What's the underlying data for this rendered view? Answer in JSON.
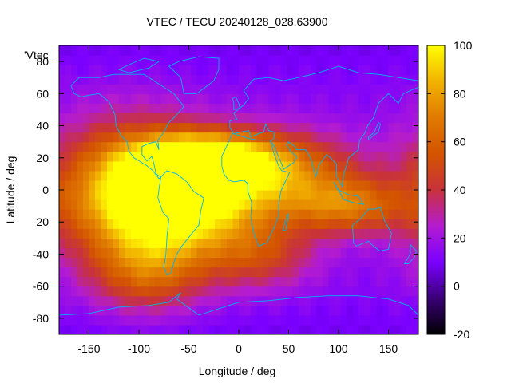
{
  "chart_data": {
    "type": "heatmap",
    "title": "VTEC / TECU 20240128_028.63900",
    "xlabel": "Longitude / deg",
    "ylabel": "Latitude / deg",
    "legend_entry": "'Vtec_",
    "xlim": [
      -180,
      180
    ],
    "ylim": [
      -90,
      90
    ],
    "x_ticks": [
      -150,
      -100,
      -50,
      0,
      50,
      100,
      150
    ],
    "y_ticks": [
      -80,
      -60,
      -40,
      -20,
      0,
      20,
      40,
      60,
      80
    ],
    "colorbar": {
      "range": [
        -20,
        100
      ],
      "ticks": [
        -20,
        0,
        20,
        40,
        60,
        80,
        100
      ],
      "stops": [
        {
          "value": -20,
          "color": "#000000"
        },
        {
          "value": -5,
          "color": "#3a0078"
        },
        {
          "value": 10,
          "color": "#7a00ff"
        },
        {
          "value": 25,
          "color": "#b41cd0"
        },
        {
          "value": 40,
          "color": "#c8323c"
        },
        {
          "value": 55,
          "color": "#d35400"
        },
        {
          "value": 70,
          "color": "#e07a00"
        },
        {
          "value": 85,
          "color": "#f2b200"
        },
        {
          "value": 100,
          "color": "#ffff00"
        }
      ]
    },
    "tec_peaks": [
      {
        "lon": -55,
        "lat": -5,
        "peak": 82,
        "sx": 55,
        "sy": 22
      },
      {
        "lon": -35,
        "lat": 20,
        "peak": 70,
        "sx": 45,
        "sy": 10
      },
      {
        "lon": -110,
        "lat": 0,
        "peak": 60,
        "sx": 55,
        "sy": 30
      },
      {
        "lon": 40,
        "lat": 10,
        "peak": 55,
        "sx": 55,
        "sy": 18
      },
      {
        "lon": 110,
        "lat": -10,
        "peak": 45,
        "sx": 40,
        "sy": 12
      },
      {
        "lon": -90,
        "lat": -50,
        "peak": 40,
        "sx": 40,
        "sy": 18
      },
      {
        "lon": 20,
        "lat": -40,
        "peak": 32,
        "sx": 40,
        "sy": 15
      }
    ],
    "background_level": 13,
    "coastline_color": "#00b4f0"
  }
}
